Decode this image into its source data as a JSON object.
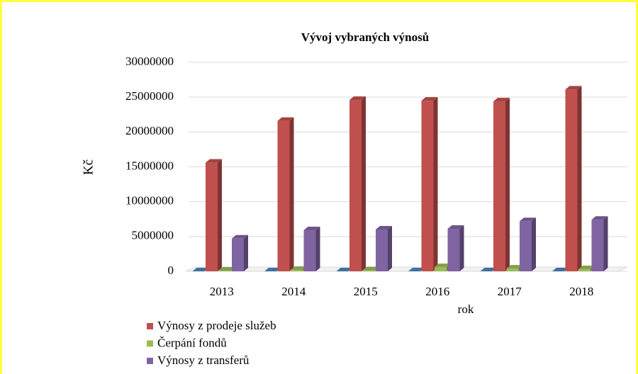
{
  "chart_data": {
    "type": "bar3d",
    "title": "Vývoj vybraných výnosů",
    "xlabel": "rok",
    "ylabel": "Kč",
    "categories": [
      "2013",
      "2014",
      "2015",
      "2016",
      "2017",
      "2018"
    ],
    "series": [
      {
        "color": "#4f81bd",
        "values": [
          0,
          0,
          0,
          0,
          0,
          0
        ]
      },
      {
        "name": "Výnosy z prodeje služeb",
        "color": "#c0504d",
        "values": [
          15600000,
          21600000,
          24600000,
          24500000,
          24400000,
          26100000
        ]
      },
      {
        "name": "Čerpání fondů",
        "color": "#9bbb59",
        "values": [
          100000,
          200000,
          150000,
          600000,
          400000,
          300000
        ]
      },
      {
        "name": "Výnosy z transferů",
        "color": "#8064a2",
        "values": [
          4700000,
          5900000,
          6000000,
          6100000,
          7200000,
          7400000
        ]
      }
    ],
    "ylim": [
      0,
      30000000
    ],
    "yticks": [
      0,
      5000000,
      10000000,
      15000000,
      20000000,
      25000000,
      30000000
    ],
    "grid": true,
    "legend": "bottom-left"
  }
}
